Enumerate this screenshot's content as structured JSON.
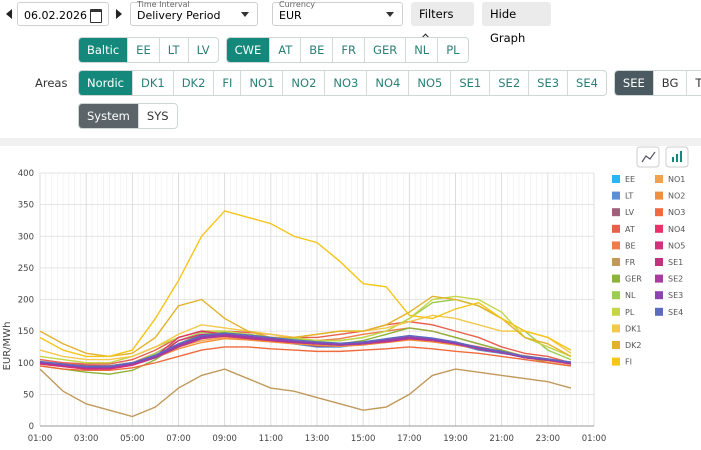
{
  "toolbar": {
    "date": "06.02.2026",
    "time_interval": {
      "label": "Time Interval",
      "value": "Delivery Period"
    },
    "currency": {
      "label": "Currency",
      "value": "EUR"
    },
    "filters": "Filters",
    "hide_graph": "Hide Graph"
  },
  "areas_label": "Areas",
  "area_rows": [
    [
      {
        "buttons": [
          "Baltic",
          "EE",
          "LT",
          "LV"
        ],
        "active_color": "#14897b"
      },
      {
        "buttons": [
          "CWE",
          "AT",
          "BE",
          "FR",
          "GER",
          "NL",
          "PL"
        ],
        "active_color": "#14897b"
      }
    ],
    [
      {
        "buttons": [
          "Nordic",
          "DK1",
          "DK2",
          "FI",
          "NO1",
          "NO2",
          "NO3",
          "NO4",
          "NO5",
          "SE1",
          "SE2",
          "SE3",
          "SE4"
        ],
        "active_color": "#14897b"
      },
      {
        "buttons": [
          "SEE",
          "BG",
          "TEL"
        ],
        "active_color": "#4b5a60"
      }
    ],
    [
      {
        "buttons": [
          "System",
          "SYS"
        ],
        "active_color": "#5b6468"
      }
    ]
  ],
  "chart_data": {
    "type": "line",
    "ylabel": "EUR/MWh",
    "x": [
      1,
      2,
      3,
      4,
      5,
      6,
      7,
      8,
      9,
      10,
      11,
      12,
      13,
      14,
      15,
      16,
      17,
      18,
      19,
      20,
      21,
      22,
      23,
      24
    ],
    "xlim": [
      1,
      25
    ],
    "xticks": [
      {
        "value": 1,
        "label": "01:00"
      },
      {
        "value": 3,
        "label": "03:00"
      },
      {
        "value": 5,
        "label": "05:00"
      },
      {
        "value": 7,
        "label": "07:00"
      },
      {
        "value": 9,
        "label": "09:00"
      },
      {
        "value": 11,
        "label": "11:00"
      },
      {
        "value": 13,
        "label": "13:00"
      },
      {
        "value": 15,
        "label": "15:00"
      },
      {
        "value": 17,
        "label": "17:00"
      },
      {
        "value": 19,
        "label": "19:00"
      },
      {
        "value": 21,
        "label": "21:00"
      },
      {
        "value": 23,
        "label": "23:00"
      },
      {
        "value": 25,
        "label": "01:00"
      }
    ],
    "ylim": [
      0,
      400
    ],
    "yticks": [
      0,
      50,
      100,
      150,
      200,
      250,
      300,
      350,
      400
    ],
    "grid": true,
    "series": [
      {
        "name": "EE",
        "color": "#29b6f6",
        "values": [
          100,
          98,
          95,
          95,
          100,
          110,
          125,
          140,
          145,
          140,
          135,
          130,
          125,
          125,
          130,
          135,
          140,
          135,
          130,
          120,
          115,
          110,
          105,
          100
        ]
      },
      {
        "name": "LT",
        "color": "#5c8fd6",
        "values": [
          100,
          98,
          95,
          95,
          100,
          110,
          125,
          140,
          145,
          140,
          135,
          130,
          125,
          125,
          130,
          135,
          140,
          135,
          130,
          120,
          115,
          110,
          105,
          100
        ]
      },
      {
        "name": "LV",
        "color": "#a0607a",
        "values": [
          100,
          98,
          96,
          95,
          100,
          112,
          127,
          142,
          146,
          141,
          136,
          131,
          126,
          126,
          131,
          136,
          141,
          136,
          131,
          121,
          116,
          111,
          106,
          101
        ]
      },
      {
        "name": "AT",
        "color": "#e8604c",
        "values": [
          105,
          100,
          98,
          98,
          105,
          120,
          140,
          150,
          150,
          148,
          145,
          140,
          140,
          145,
          150,
          160,
          165,
          160,
          150,
          140,
          125,
          115,
          110,
          100
        ]
      },
      {
        "name": "BE",
        "color": "#f07c4c",
        "values": [
          100,
          95,
          92,
          92,
          100,
          115,
          135,
          145,
          148,
          145,
          140,
          135,
          135,
          138,
          145,
          150,
          155,
          150,
          140,
          130,
          120,
          110,
          105,
          98
        ]
      },
      {
        "name": "FR",
        "color": "#c19a5b",
        "values": [
          90,
          55,
          35,
          25,
          15,
          30,
          60,
          80,
          90,
          75,
          60,
          55,
          45,
          35,
          25,
          30,
          50,
          80,
          90,
          85,
          80,
          75,
          70,
          60
        ]
      },
      {
        "name": "GER",
        "color": "#8db33a",
        "values": [
          95,
          90,
          85,
          82,
          88,
          105,
          130,
          145,
          148,
          145,
          140,
          135,
          130,
          130,
          135,
          145,
          155,
          150,
          140,
          130,
          120,
          110,
          100,
          95
        ]
      },
      {
        "name": "NL",
        "color": "#9ccc50",
        "values": [
          100,
          95,
          92,
          90,
          98,
          115,
          135,
          148,
          150,
          145,
          140,
          138,
          135,
          135,
          140,
          150,
          170,
          195,
          200,
          190,
          170,
          150,
          120,
          105
        ]
      },
      {
        "name": "PL",
        "color": "#c4d648",
        "values": [
          110,
          105,
          100,
          100,
          110,
          125,
          140,
          150,
          150,
          145,
          140,
          140,
          135,
          135,
          140,
          150,
          170,
          200,
          205,
          200,
          180,
          140,
          125,
          110
        ]
      },
      {
        "name": "DK1",
        "color": "#f2c94c",
        "values": [
          120,
          110,
          105,
          105,
          110,
          125,
          145,
          160,
          155,
          150,
          145,
          140,
          145,
          150,
          150,
          155,
          165,
          175,
          170,
          160,
          150,
          150,
          140,
          115
        ]
      },
      {
        "name": "DK2",
        "color": "#e3b22d",
        "values": [
          150,
          130,
          115,
          110,
          115,
          140,
          190,
          200,
          170,
          150,
          140,
          140,
          145,
          150,
          150,
          160,
          180,
          205,
          200,
          190,
          170,
          140,
          130,
          110
        ]
      },
      {
        "name": "FI",
        "color": "#f5c518",
        "values": [
          140,
          120,
          110,
          110,
          120,
          170,
          230,
          300,
          340,
          330,
          320,
          300,
          290,
          260,
          225,
          220,
          175,
          170,
          185,
          195,
          170,
          150,
          140,
          120
        ]
      },
      {
        "name": "NO1",
        "color": "#f4a24a",
        "values": [
          100,
          95,
          92,
          92,
          100,
          110,
          125,
          135,
          140,
          138,
          135,
          132,
          130,
          128,
          130,
          135,
          138,
          135,
          130,
          125,
          118,
          110,
          105,
          100
        ]
      },
      {
        "name": "NO2",
        "color": "#f0903c",
        "values": [
          98,
          94,
          90,
          90,
          97,
          108,
          122,
          132,
          138,
          136,
          133,
          130,
          128,
          126,
          128,
          132,
          136,
          133,
          128,
          122,
          116,
          108,
          103,
          98
        ]
      },
      {
        "name": "NO3",
        "color": "#ef6b3c",
        "values": [
          95,
          90,
          88,
          88,
          92,
          100,
          110,
          120,
          125,
          125,
          122,
          120,
          118,
          118,
          120,
          122,
          125,
          122,
          118,
          115,
          110,
          105,
          100,
          95
        ]
      },
      {
        "name": "NO4",
        "color": "#e8336a",
        "values": [
          100,
          95,
          92,
          92,
          98,
          110,
          140,
          150,
          145,
          140,
          138,
          135,
          132,
          130,
          132,
          135,
          140,
          138,
          132,
          125,
          118,
          110,
          105,
          100
        ]
      },
      {
        "name": "NO5",
        "color": "#d6307a",
        "values": [
          98,
          94,
          90,
          90,
          96,
          108,
          135,
          145,
          142,
          138,
          135,
          132,
          130,
          128,
          130,
          133,
          138,
          135,
          130,
          122,
          116,
          108,
          104,
          98
        ]
      },
      {
        "name": "SE1",
        "color": "#c2307e",
        "values": [
          100,
          96,
          92,
          92,
          98,
          108,
          125,
          138,
          142,
          139,
          135,
          132,
          130,
          128,
          130,
          134,
          138,
          135,
          130,
          122,
          116,
          108,
          104,
          99
        ]
      },
      {
        "name": "SE2",
        "color": "#a83aa0",
        "values": [
          100,
          96,
          92,
          92,
          98,
          108,
          126,
          139,
          143,
          140,
          136,
          133,
          130,
          128,
          130,
          134,
          139,
          136,
          130,
          122,
          116,
          108,
          104,
          99
        ]
      },
      {
        "name": "SE3",
        "color": "#8c44b0",
        "values": [
          101,
          97,
          93,
          93,
          99,
          110,
          128,
          141,
          145,
          142,
          138,
          134,
          131,
          129,
          131,
          136,
          141,
          137,
          131,
          123,
          117,
          109,
          105,
          100
        ]
      },
      {
        "name": "SE4",
        "color": "#5c6bc0",
        "values": [
          102,
          98,
          94,
          94,
          100,
          112,
          130,
          143,
          147,
          144,
          140,
          136,
          133,
          131,
          133,
          138,
          143,
          139,
          133,
          124,
          118,
          110,
          106,
          101
        ]
      }
    ]
  }
}
